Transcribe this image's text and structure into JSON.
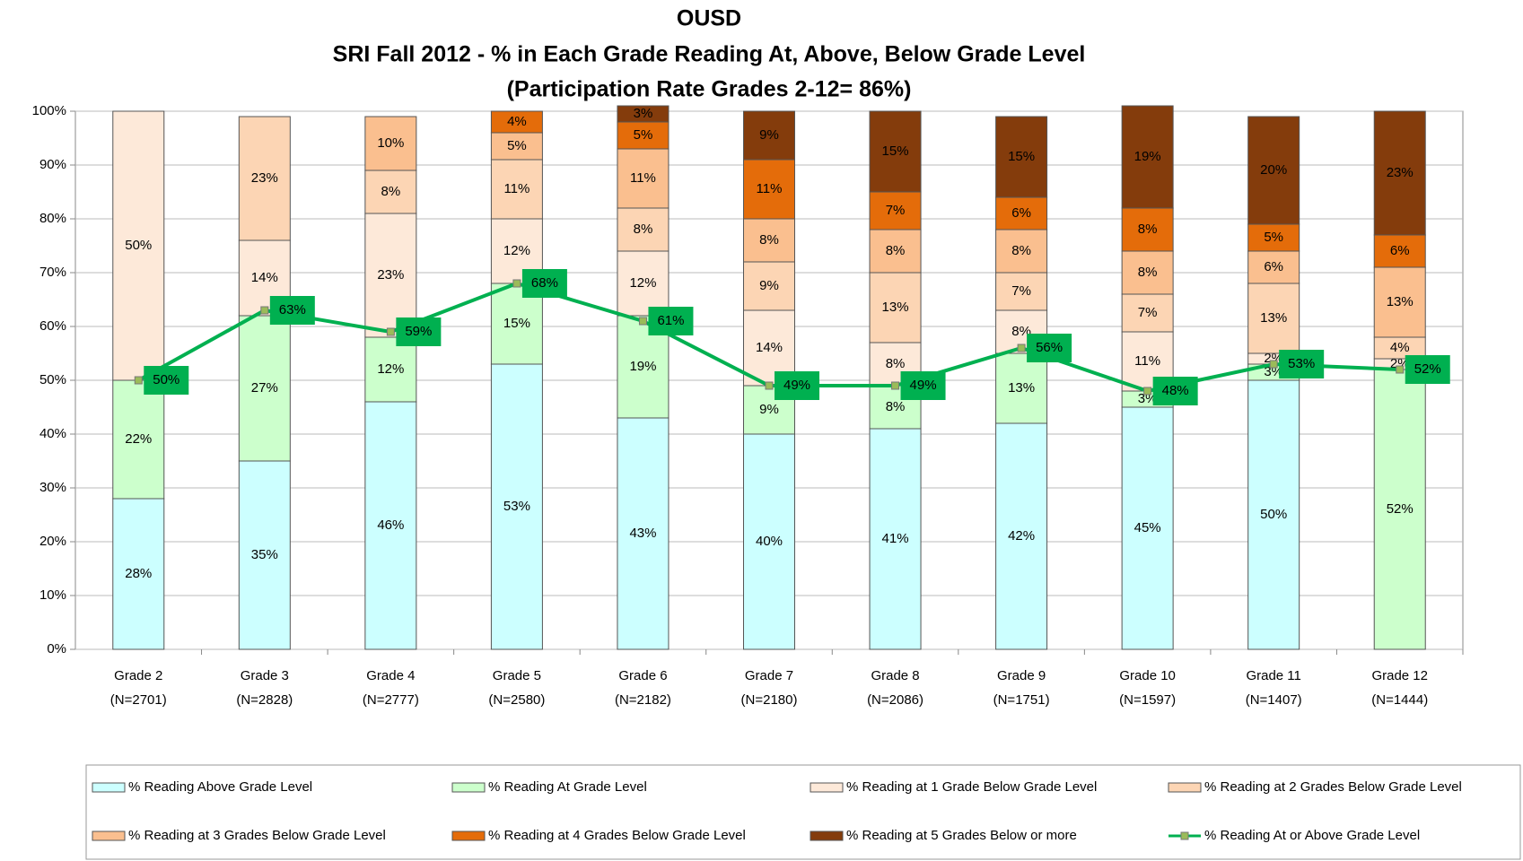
{
  "chart_data": {
    "type": "bar",
    "stacked": true,
    "title": [
      "OUSD",
      "SRI Fall 2012 - %  in Each Grade Reading At, Above, Below Grade Level",
      "(Participation Rate Grades 2-12= 86%)"
    ],
    "categories": [
      [
        "Grade 2",
        "(N=2701)"
      ],
      [
        "Grade 3",
        "(N=2828)"
      ],
      [
        "Grade 4",
        "(N=2777)"
      ],
      [
        "Grade 5",
        "(N=2580)"
      ],
      [
        "Grade 6",
        "(N=2182)"
      ],
      [
        "Grade 7",
        "(N=2180)"
      ],
      [
        "Grade 8",
        "(N=2086)"
      ],
      [
        "Grade 9",
        "(N=1751)"
      ],
      [
        "Grade 10",
        "(N=1597)"
      ],
      [
        "Grade 11",
        "(N=1407)"
      ],
      [
        "Grade 12",
        "(N=1444)"
      ]
    ],
    "ylim": [
      0,
      100
    ],
    "yticks": [
      {
        "value": 0,
        "label": "0%"
      },
      {
        "value": 10,
        "label": "10%"
      },
      {
        "value": 20,
        "label": "20%"
      },
      {
        "value": 30,
        "label": "30%"
      },
      {
        "value": 40,
        "label": "40%"
      },
      {
        "value": 50,
        "label": "50%"
      },
      {
        "value": 60,
        "label": "60%"
      },
      {
        "value": 70,
        "label": "70%"
      },
      {
        "value": 80,
        "label": "80%"
      },
      {
        "value": 90,
        "label": "90%"
      },
      {
        "value": 100,
        "label": "100%"
      }
    ],
    "grid": true,
    "legend": "bottom",
    "series": [
      {
        "name": "% Reading Above Grade Level",
        "color": "#ccffff",
        "values": [
          28,
          35,
          46,
          53,
          43,
          40,
          41,
          42,
          45,
          50,
          null
        ],
        "value_labels": [
          "28%",
          "35%",
          "46%",
          "53%",
          "43%",
          "40%",
          "41%",
          "42%",
          "45%",
          "50%",
          null
        ]
      },
      {
        "name": "% Reading At Grade Level",
        "color": "#ccffcc",
        "values": [
          22,
          27,
          12,
          15,
          19,
          9,
          8,
          13,
          3,
          3,
          52
        ],
        "value_labels": [
          "22%",
          "27%",
          "12%",
          "15%",
          "19%",
          "9%",
          "8%",
          "13%",
          "3%",
          "3%",
          "52%"
        ]
      },
      {
        "name": "% Reading at 1 Grade Below Grade Level",
        "color": "#fde9d9",
        "values": [
          50,
          14,
          23,
          12,
          12,
          14,
          8,
          8,
          11,
          2,
          2
        ],
        "value_labels": [
          "50%",
          "14%",
          "23%",
          "12%",
          "12%",
          "14%",
          "8%",
          "8%",
          "11%",
          "2%",
          "2%"
        ]
      },
      {
        "name": "% Reading at 2 Grades Below Grade Level",
        "color": "#fcd5b4",
        "values": [
          null,
          23,
          8,
          11,
          8,
          9,
          13,
          7,
          7,
          13,
          4
        ],
        "value_labels": [
          null,
          "23%",
          "8%",
          "11%",
          "8%",
          "9%",
          "13%",
          "7%",
          "7%",
          "13%",
          "4%"
        ]
      },
      {
        "name": "% Reading at 3 Grades Below Grade Level",
        "color": "#fabf8f",
        "values": [
          null,
          null,
          10,
          5,
          11,
          8,
          8,
          8,
          8,
          6,
          13
        ],
        "value_labels": [
          null,
          null,
          "10%",
          "5%",
          "11%",
          "8%",
          "8%",
          "8%",
          "8%",
          "6%",
          "13%"
        ]
      },
      {
        "name": "% Reading at 4 Grades Below Grade Level",
        "color": "#e46c0a",
        "values": [
          null,
          null,
          null,
          4,
          5,
          11,
          7,
          6,
          8,
          5,
          6
        ],
        "value_labels": [
          null,
          null,
          null,
          "4%",
          "5%",
          "11%",
          "7%",
          "6%",
          "8%",
          "5%",
          "6%"
        ]
      },
      {
        "name": "% Reading at 5 Grades Below or more",
        "color": "#843c0c",
        "values": [
          null,
          null,
          null,
          null,
          3,
          9,
          15,
          15,
          19,
          20,
          23
        ],
        "value_labels": [
          null,
          null,
          null,
          null,
          "3%",
          "9%",
          "15%",
          "15%",
          "19%",
          "20%",
          "23%"
        ]
      },
      {
        "name": "% Reading At or Above Grade Level",
        "type": "line",
        "color": "#00b050",
        "values": [
          50,
          63,
          59,
          68,
          61,
          49,
          49,
          56,
          48,
          53,
          52
        ],
        "value_labels": [
          "50%",
          "63%",
          "59%",
          "68%",
          "61%",
          "49%",
          "49%",
          "56%",
          "48%",
          "53%",
          "52%"
        ]
      }
    ]
  }
}
